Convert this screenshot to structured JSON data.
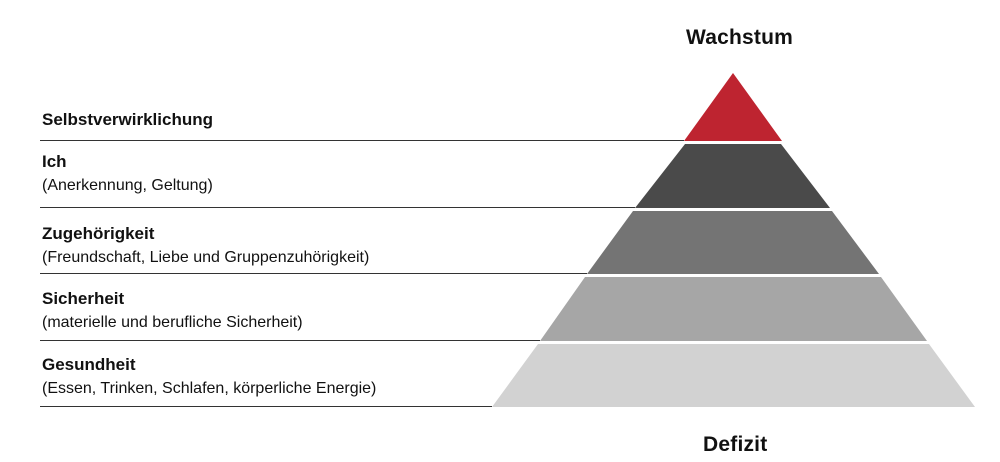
{
  "labels": {
    "top": "Wachstum",
    "bottom": "Defizit"
  },
  "levels": [
    {
      "title": "Selbstverwirklichung",
      "description": "",
      "color": "#be2430"
    },
    {
      "title": "Ich",
      "description": "(Anerkennung, Geltung)",
      "color": "#4a4a4a"
    },
    {
      "title": "Zugehörigkeit",
      "description": "(Freundschaft, Liebe und Gruppenzuhörigkeit)",
      "color": "#747474"
    },
    {
      "title": "Sicherheit",
      "description": "(materielle und berufliche Sicherheit)",
      "color": "#a6a6a6"
    },
    {
      "title": "Gesundheit",
      "description": "(Essen, Trinken, Schlafen, körperliche Energie)",
      "color": "#d2d2d2"
    }
  ]
}
